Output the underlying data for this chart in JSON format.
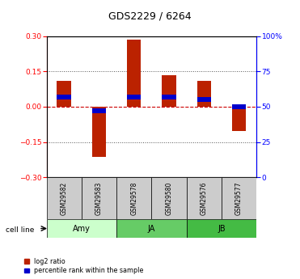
{
  "title": "GDS2229 / 6264",
  "samples": [
    "GSM29582",
    "GSM29583",
    "GSM29578",
    "GSM29580",
    "GSM29576",
    "GSM29577"
  ],
  "log2_ratios": [
    0.11,
    -0.215,
    0.285,
    0.135,
    0.11,
    -0.105
  ],
  "percentile_ranks": [
    57,
    47,
    57,
    57,
    55,
    50
  ],
  "bar_width": 0.4,
  "ylim": [
    -0.3,
    0.3
  ],
  "yticks_left": [
    -0.3,
    -0.15,
    0,
    0.15,
    0.3
  ],
  "yticks_right": [
    0,
    25,
    50,
    75,
    100
  ],
  "bar_color_red": "#bb2200",
  "bar_color_blue": "#0000cc",
  "zero_line_color": "#cc0000",
  "grid_color": "#555555",
  "sample_box_color": "#cccccc",
  "cell_groups": [
    {
      "label": "Amy",
      "start": 0,
      "end": 1,
      "color": "#ccffcc"
    },
    {
      "label": "JA",
      "start": 2,
      "end": 3,
      "color": "#66cc66"
    },
    {
      "label": "JB",
      "start": 4,
      "end": 5,
      "color": "#44bb44"
    }
  ],
  "cell_line_label": "cell line",
  "legend_labels": [
    "log2 ratio",
    "percentile rank within the sample"
  ]
}
